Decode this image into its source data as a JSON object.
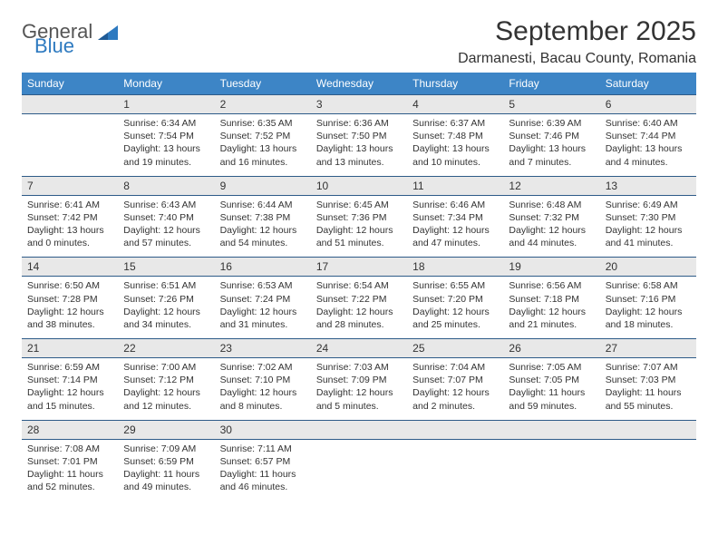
{
  "logo": {
    "word1": "General",
    "word2": "Blue",
    "word1_color": "#555555",
    "word2_color": "#2e7ac0"
  },
  "title": "September 2025",
  "location": "Darmanesti, Bacau County, Romania",
  "header_bg": "#3d85c6",
  "daynum_bg": "#e8e8e8",
  "border_color": "#2e5b88",
  "weekdays": [
    "Sunday",
    "Monday",
    "Tuesday",
    "Wednesday",
    "Thursday",
    "Friday",
    "Saturday"
  ],
  "weeks": [
    {
      "nums": [
        "",
        "1",
        "2",
        "3",
        "4",
        "5",
        "6"
      ],
      "cells": [
        {
          "sunrise": "",
          "sunset": "",
          "dayl1": "",
          "dayl2": ""
        },
        {
          "sunrise": "Sunrise: 6:34 AM",
          "sunset": "Sunset: 7:54 PM",
          "dayl1": "Daylight: 13 hours",
          "dayl2": "and 19 minutes."
        },
        {
          "sunrise": "Sunrise: 6:35 AM",
          "sunset": "Sunset: 7:52 PM",
          "dayl1": "Daylight: 13 hours",
          "dayl2": "and 16 minutes."
        },
        {
          "sunrise": "Sunrise: 6:36 AM",
          "sunset": "Sunset: 7:50 PM",
          "dayl1": "Daylight: 13 hours",
          "dayl2": "and 13 minutes."
        },
        {
          "sunrise": "Sunrise: 6:37 AM",
          "sunset": "Sunset: 7:48 PM",
          "dayl1": "Daylight: 13 hours",
          "dayl2": "and 10 minutes."
        },
        {
          "sunrise": "Sunrise: 6:39 AM",
          "sunset": "Sunset: 7:46 PM",
          "dayl1": "Daylight: 13 hours",
          "dayl2": "and 7 minutes."
        },
        {
          "sunrise": "Sunrise: 6:40 AM",
          "sunset": "Sunset: 7:44 PM",
          "dayl1": "Daylight: 13 hours",
          "dayl2": "and 4 minutes."
        }
      ]
    },
    {
      "nums": [
        "7",
        "8",
        "9",
        "10",
        "11",
        "12",
        "13"
      ],
      "cells": [
        {
          "sunrise": "Sunrise: 6:41 AM",
          "sunset": "Sunset: 7:42 PM",
          "dayl1": "Daylight: 13 hours",
          "dayl2": "and 0 minutes."
        },
        {
          "sunrise": "Sunrise: 6:43 AM",
          "sunset": "Sunset: 7:40 PM",
          "dayl1": "Daylight: 12 hours",
          "dayl2": "and 57 minutes."
        },
        {
          "sunrise": "Sunrise: 6:44 AM",
          "sunset": "Sunset: 7:38 PM",
          "dayl1": "Daylight: 12 hours",
          "dayl2": "and 54 minutes."
        },
        {
          "sunrise": "Sunrise: 6:45 AM",
          "sunset": "Sunset: 7:36 PM",
          "dayl1": "Daylight: 12 hours",
          "dayl2": "and 51 minutes."
        },
        {
          "sunrise": "Sunrise: 6:46 AM",
          "sunset": "Sunset: 7:34 PM",
          "dayl1": "Daylight: 12 hours",
          "dayl2": "and 47 minutes."
        },
        {
          "sunrise": "Sunrise: 6:48 AM",
          "sunset": "Sunset: 7:32 PM",
          "dayl1": "Daylight: 12 hours",
          "dayl2": "and 44 minutes."
        },
        {
          "sunrise": "Sunrise: 6:49 AM",
          "sunset": "Sunset: 7:30 PM",
          "dayl1": "Daylight: 12 hours",
          "dayl2": "and 41 minutes."
        }
      ]
    },
    {
      "nums": [
        "14",
        "15",
        "16",
        "17",
        "18",
        "19",
        "20"
      ],
      "cells": [
        {
          "sunrise": "Sunrise: 6:50 AM",
          "sunset": "Sunset: 7:28 PM",
          "dayl1": "Daylight: 12 hours",
          "dayl2": "and 38 minutes."
        },
        {
          "sunrise": "Sunrise: 6:51 AM",
          "sunset": "Sunset: 7:26 PM",
          "dayl1": "Daylight: 12 hours",
          "dayl2": "and 34 minutes."
        },
        {
          "sunrise": "Sunrise: 6:53 AM",
          "sunset": "Sunset: 7:24 PM",
          "dayl1": "Daylight: 12 hours",
          "dayl2": "and 31 minutes."
        },
        {
          "sunrise": "Sunrise: 6:54 AM",
          "sunset": "Sunset: 7:22 PM",
          "dayl1": "Daylight: 12 hours",
          "dayl2": "and 28 minutes."
        },
        {
          "sunrise": "Sunrise: 6:55 AM",
          "sunset": "Sunset: 7:20 PM",
          "dayl1": "Daylight: 12 hours",
          "dayl2": "and 25 minutes."
        },
        {
          "sunrise": "Sunrise: 6:56 AM",
          "sunset": "Sunset: 7:18 PM",
          "dayl1": "Daylight: 12 hours",
          "dayl2": "and 21 minutes."
        },
        {
          "sunrise": "Sunrise: 6:58 AM",
          "sunset": "Sunset: 7:16 PM",
          "dayl1": "Daylight: 12 hours",
          "dayl2": "and 18 minutes."
        }
      ]
    },
    {
      "nums": [
        "21",
        "22",
        "23",
        "24",
        "25",
        "26",
        "27"
      ],
      "cells": [
        {
          "sunrise": "Sunrise: 6:59 AM",
          "sunset": "Sunset: 7:14 PM",
          "dayl1": "Daylight: 12 hours",
          "dayl2": "and 15 minutes."
        },
        {
          "sunrise": "Sunrise: 7:00 AM",
          "sunset": "Sunset: 7:12 PM",
          "dayl1": "Daylight: 12 hours",
          "dayl2": "and 12 minutes."
        },
        {
          "sunrise": "Sunrise: 7:02 AM",
          "sunset": "Sunset: 7:10 PM",
          "dayl1": "Daylight: 12 hours",
          "dayl2": "and 8 minutes."
        },
        {
          "sunrise": "Sunrise: 7:03 AM",
          "sunset": "Sunset: 7:09 PM",
          "dayl1": "Daylight: 12 hours",
          "dayl2": "and 5 minutes."
        },
        {
          "sunrise": "Sunrise: 7:04 AM",
          "sunset": "Sunset: 7:07 PM",
          "dayl1": "Daylight: 12 hours",
          "dayl2": "and 2 minutes."
        },
        {
          "sunrise": "Sunrise: 7:05 AM",
          "sunset": "Sunset: 7:05 PM",
          "dayl1": "Daylight: 11 hours",
          "dayl2": "and 59 minutes."
        },
        {
          "sunrise": "Sunrise: 7:07 AM",
          "sunset": "Sunset: 7:03 PM",
          "dayl1": "Daylight: 11 hours",
          "dayl2": "and 55 minutes."
        }
      ]
    },
    {
      "nums": [
        "28",
        "29",
        "30",
        "",
        "",
        "",
        ""
      ],
      "cells": [
        {
          "sunrise": "Sunrise: 7:08 AM",
          "sunset": "Sunset: 7:01 PM",
          "dayl1": "Daylight: 11 hours",
          "dayl2": "and 52 minutes."
        },
        {
          "sunrise": "Sunrise: 7:09 AM",
          "sunset": "Sunset: 6:59 PM",
          "dayl1": "Daylight: 11 hours",
          "dayl2": "and 49 minutes."
        },
        {
          "sunrise": "Sunrise: 7:11 AM",
          "sunset": "Sunset: 6:57 PM",
          "dayl1": "Daylight: 11 hours",
          "dayl2": "and 46 minutes."
        },
        {
          "sunrise": "",
          "sunset": "",
          "dayl1": "",
          "dayl2": ""
        },
        {
          "sunrise": "",
          "sunset": "",
          "dayl1": "",
          "dayl2": ""
        },
        {
          "sunrise": "",
          "sunset": "",
          "dayl1": "",
          "dayl2": ""
        },
        {
          "sunrise": "",
          "sunset": "",
          "dayl1": "",
          "dayl2": ""
        }
      ]
    }
  ]
}
